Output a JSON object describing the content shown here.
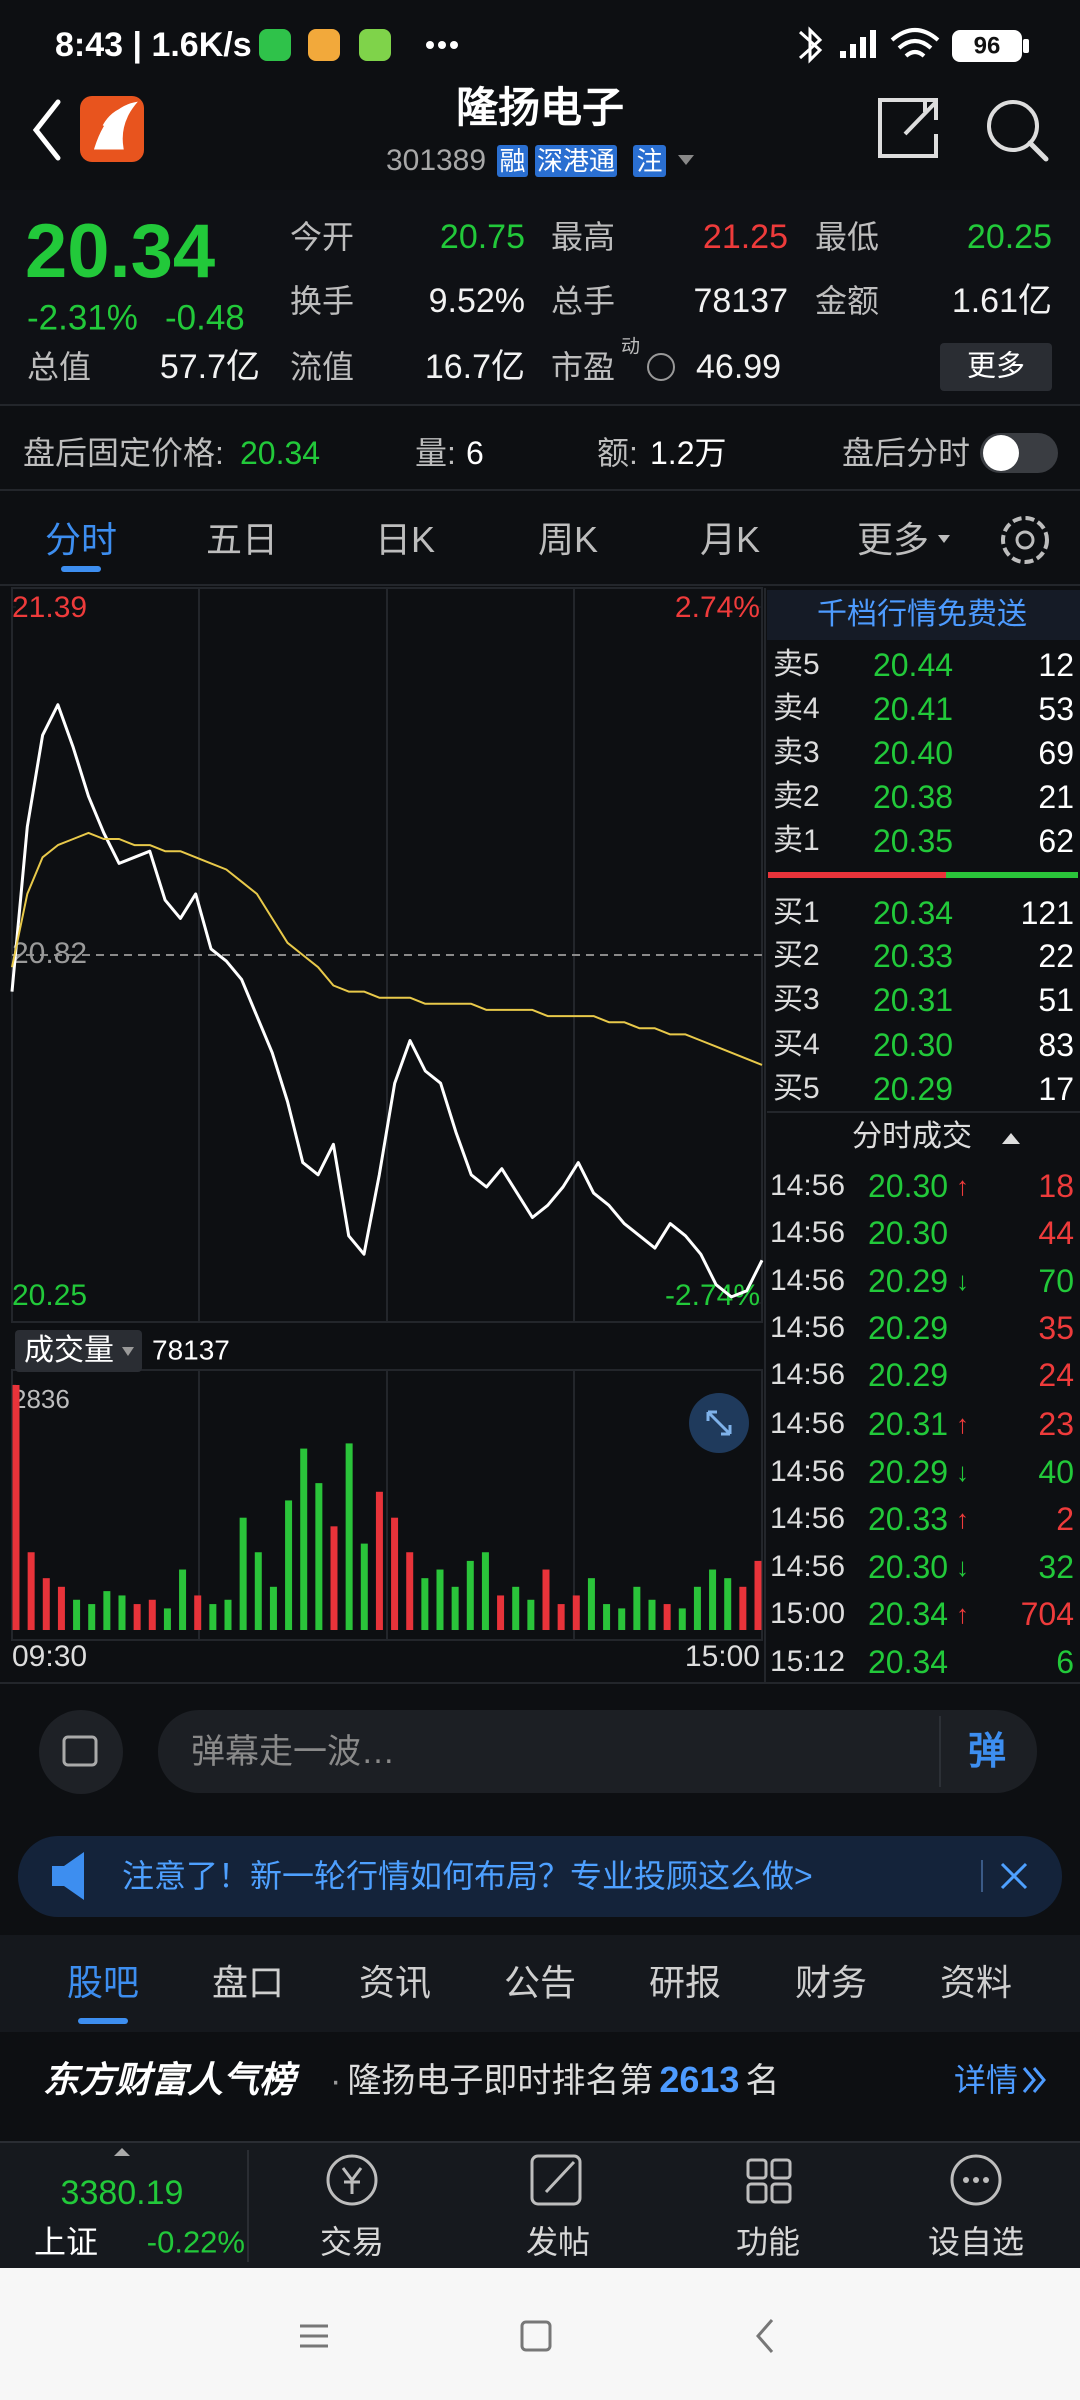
{
  "status_bar": {
    "time_speed": "8:43 | 1.6K/s",
    "battery": "96"
  },
  "header": {
    "title": "隆扬电子",
    "code": "301389",
    "badges": [
      "融",
      "深港通",
      "注"
    ]
  },
  "quote": {
    "price": "20.34",
    "change_pct": "-2.31%",
    "change": "-0.48",
    "stats": [
      [
        {
          "label": "今开",
          "value": "20.75",
          "color": "#22c93a"
        },
        {
          "label": "最高",
          "value": "21.25",
          "color": "#ee3b3b"
        },
        {
          "label": "最低",
          "value": "20.25",
          "color": "#22c93a"
        }
      ],
      [
        {
          "label": "换手",
          "value": "9.52%",
          "color": "#f2f2f2"
        },
        {
          "label": "总手",
          "value": "78137",
          "color": "#f2f2f2"
        },
        {
          "label": "金额",
          "value": "1.61亿",
          "color": "#f2f2f2"
        }
      ],
      [
        {
          "label": "总值",
          "value": "57.7亿",
          "color": "#f2f2f2"
        },
        {
          "label": "流值",
          "value": "16.7亿",
          "color": "#f2f2f2"
        },
        {
          "label": "市盈",
          "sup": "动",
          "value": "46.99",
          "color": "#f2f2f2"
        }
      ]
    ],
    "more_button": "更多"
  },
  "after_hours": {
    "label": "盘后固定价格:",
    "price": "20.34",
    "volume_label": "量:",
    "volume": "6",
    "amount_label": "额:",
    "amount": "1.2万",
    "toggle_label": "盘后分时"
  },
  "chart_tabs": {
    "items": [
      "分时",
      "五日",
      "日K",
      "周K",
      "月K",
      "更多"
    ],
    "active": 0
  },
  "chart_data": [
    {
      "type": "line",
      "categories": [
        "09:30",
        null,
        null,
        null,
        null,
        null,
        null,
        null,
        null,
        null,
        null,
        null,
        null,
        null,
        null,
        null,
        null,
        null,
        null,
        null,
        null,
        null,
        null,
        null,
        null,
        null,
        null,
        null,
        null,
        null,
        null,
        null,
        null,
        null,
        null,
        null,
        null,
        null,
        null,
        null,
        null,
        null,
        null,
        null,
        null,
        null,
        null,
        null,
        null,
        "15:00"
      ],
      "series": [
        {
          "color": "#ffffff",
          "values": [
            20.76,
            21.03,
            21.18,
            21.23,
            21.16,
            21.08,
            21.02,
            20.97,
            20.98,
            20.99,
            20.91,
            20.88,
            20.92,
            20.83,
            20.81,
            20.78,
            20.72,
            20.66,
            20.58,
            20.48,
            20.46,
            20.51,
            20.36,
            20.33,
            20.46,
            20.61,
            20.68,
            20.63,
            20.61,
            20.53,
            20.46,
            20.44,
            20.47,
            20.43,
            20.39,
            20.41,
            20.44,
            20.48,
            20.43,
            20.41,
            20.38,
            20.36,
            20.34,
            20.38,
            20.36,
            20.33,
            20.28,
            20.26,
            20.27,
            20.32
          ]
        },
        {
          "color": "#e8c94a",
          "values": [
            20.8,
            20.92,
            20.98,
            21.0,
            21.01,
            21.02,
            21.01,
            21.01,
            21.0,
            21.0,
            20.99,
            20.99,
            20.98,
            20.97,
            20.96,
            20.94,
            20.92,
            20.88,
            20.84,
            20.82,
            20.8,
            20.77,
            20.76,
            20.76,
            20.75,
            20.75,
            20.75,
            20.74,
            20.74,
            20.74,
            20.74,
            20.73,
            20.73,
            20.73,
            20.73,
            20.72,
            20.72,
            20.72,
            20.72,
            20.71,
            20.71,
            20.7,
            20.7,
            20.69,
            20.69,
            20.68,
            20.67,
            20.66,
            20.65,
            20.64
          ]
        }
      ],
      "ylim": [
        20.25,
        21.39
      ],
      "yticks": [
        20.25,
        20.82,
        21.39
      ],
      "y2lim": [
        -2.74,
        2.74
      ],
      "y2ticks": [
        {
          "value": -2.74,
          "label": "-2.74%"
        },
        {
          "value": 2.74,
          "label": "2.74%"
        }
      ]
    },
    {
      "type": "bar",
      "title": "成交量",
      "total": "78137",
      "categories": [
        "09:30",
        null,
        null,
        null,
        null,
        null,
        null,
        null,
        null,
        null,
        null,
        null,
        null,
        null,
        null,
        null,
        null,
        null,
        null,
        null,
        null,
        null,
        null,
        null,
        null,
        null,
        null,
        null,
        null,
        null,
        null,
        null,
        null,
        null,
        null,
        null,
        null,
        null,
        null,
        null,
        null,
        null,
        null,
        null,
        null,
        null,
        null,
        null,
        null,
        "15:00"
      ],
      "values": [
        2836,
        900,
        600,
        500,
        350,
        300,
        450,
        400,
        300,
        350,
        250,
        700,
        400,
        300,
        350,
        1300,
        900,
        500,
        1500,
        2100,
        1700,
        1200,
        2160,
        1000,
        1600,
        1300,
        900,
        600,
        700,
        500,
        800,
        900,
        400,
        500,
        350,
        700,
        300,
        400,
        600,
        300,
        250,
        500,
        350,
        300,
        250,
        500,
        700,
        600,
        500,
        800
      ],
      "colors": [
        "#e8333a",
        "#e8333a",
        "#e8333a",
        "#e8333a",
        "#2ac43a",
        "#2ac43a",
        "#2ac43a",
        "#2ac43a",
        "#e8333a",
        "#e8333a",
        "#2ac43a",
        "#2ac43a",
        "#e8333a",
        "#2ac43a",
        "#2ac43a",
        "#2ac43a",
        "#2ac43a",
        "#2ac43a",
        "#2ac43a",
        "#2ac43a",
        "#2ac43a",
        "#e8333a",
        "#2ac43a",
        "#2ac43a",
        "#e8333a",
        "#e8333a",
        "#e8333a",
        "#2ac43a",
        "#2ac43a",
        "#2ac43a",
        "#2ac43a",
        "#2ac43a",
        "#e8333a",
        "#2ac43a",
        "#2ac43a",
        "#e8333a",
        "#e8333a",
        "#e8333a",
        "#2ac43a",
        "#2ac43a",
        "#2ac43a",
        "#2ac43a",
        "#2ac43a",
        "#e8333a",
        "#2ac43a",
        "#2ac43a",
        "#2ac43a",
        "#2ac43a",
        "#e8333a",
        "#e8333a"
      ],
      "ylim": [
        0,
        2836
      ],
      "yticks": [
        2836
      ]
    }
  ],
  "order_book": {
    "title": "千档行情免费送",
    "asks": [
      {
        "label": "卖5",
        "price": "20.44",
        "qty": "12"
      },
      {
        "label": "卖4",
        "price": "20.41",
        "qty": "53"
      },
      {
        "label": "卖3",
        "price": "20.40",
        "qty": "69"
      },
      {
        "label": "卖2",
        "price": "20.38",
        "qty": "21"
      },
      {
        "label": "卖1",
        "price": "20.35",
        "qty": "62"
      }
    ],
    "bids": [
      {
        "label": "买1",
        "price": "20.34",
        "qty": "121"
      },
      {
        "label": "买2",
        "price": "20.33",
        "qty": "22"
      },
      {
        "label": "买3",
        "price": "20.31",
        "qty": "51"
      },
      {
        "label": "买4",
        "price": "20.30",
        "qty": "83"
      },
      {
        "label": "买5",
        "price": "20.29",
        "qty": "17"
      }
    ]
  },
  "trades": {
    "title": "分时成交",
    "rows": [
      {
        "time": "14:56",
        "price": "20.30",
        "dir": "↑",
        "qty": "18",
        "color": "#ee3b3b"
      },
      {
        "time": "14:56",
        "price": "20.30",
        "qty": "44",
        "color": "#ee3b3b"
      },
      {
        "time": "14:56",
        "price": "20.29",
        "dir": "↓",
        "qty": "70",
        "color": "#22c93a"
      },
      {
        "time": "14:56",
        "price": "20.29",
        "qty": "35",
        "color": "#ee3b3b"
      },
      {
        "time": "14:56",
        "price": "20.29",
        "qty": "24",
        "color": "#ee3b3b"
      },
      {
        "time": "14:56",
        "price": "20.31",
        "dir": "↑",
        "qty": "23",
        "color": "#ee3b3b"
      },
      {
        "time": "14:56",
        "price": "20.29",
        "dir": "↓",
        "qty": "40",
        "color": "#22c93a"
      },
      {
        "time": "14:56",
        "price": "20.33",
        "dir": "↑",
        "qty": "2",
        "color": "#ee3b3b"
      },
      {
        "time": "14:56",
        "price": "20.30",
        "dir": "↓",
        "qty": "32",
        "color": "#22c93a"
      },
      {
        "time": "15:00",
        "price": "20.34",
        "dir": "↑",
        "qty": "704",
        "color": "#ee3b3b"
      },
      {
        "time": "15:12",
        "price": "20.34",
        "qty": "6",
        "color": "#22c93a"
      }
    ]
  },
  "comment_bar": {
    "placeholder": "弹幕走一波…",
    "button": "弹"
  },
  "banner": {
    "text": "注意了！新一轮行情如何布局？专业投顾这么做>"
  },
  "bottom_tabs": {
    "items": [
      "股吧",
      "盘口",
      "资讯",
      "公告",
      "研报",
      "财务",
      "资料"
    ],
    "active": 0
  },
  "ranking": {
    "brand": "东方财富人气榜",
    "separator": "·",
    "text": "隆扬电子即时排名第",
    "rank": "2613",
    "suffix": "名",
    "link": "详情"
  },
  "bottom_nav": {
    "index_value": "3380.19",
    "index_name": "上证",
    "index_change": "-0.22%",
    "items": [
      "交易",
      "发帖",
      "功能",
      "设自选"
    ]
  }
}
